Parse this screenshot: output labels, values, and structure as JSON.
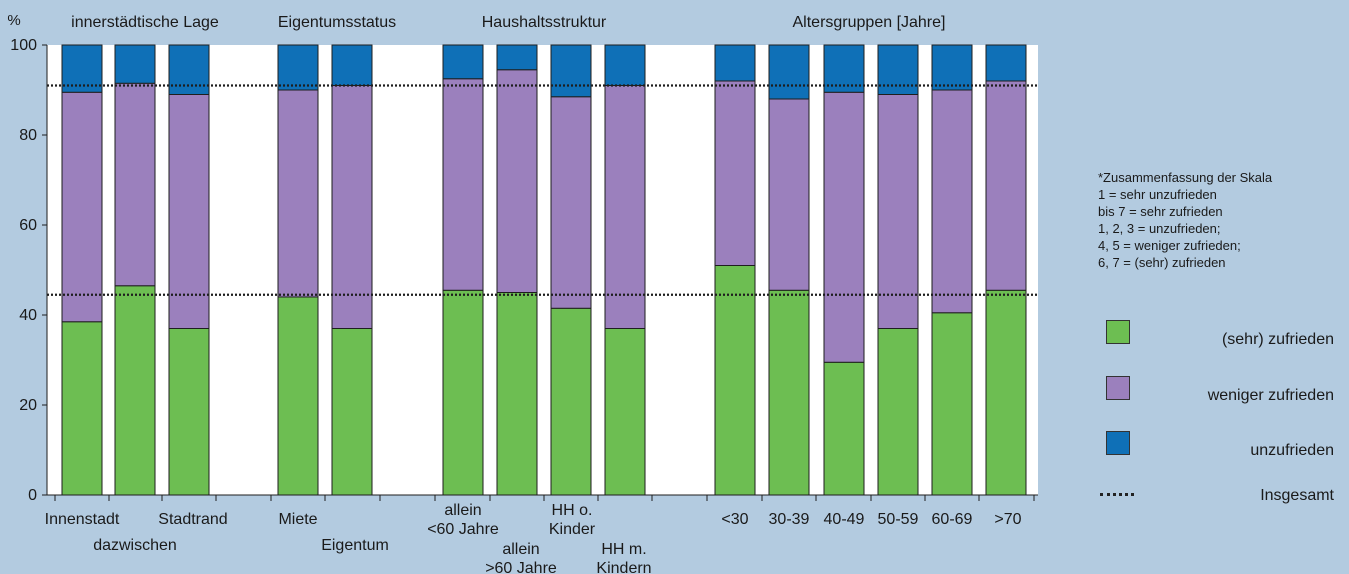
{
  "chart_data": {
    "type": "bar",
    "stacked": true,
    "y_unit_label": "%",
    "ylim": [
      0,
      100
    ],
    "yticks": [
      0,
      20,
      40,
      60,
      80,
      100
    ],
    "group_headers": [
      "innerstädtische Lage",
      "Eigentumsstatus",
      "Haushaltsstruktur",
      "Altersgruppen [Jahre]"
    ],
    "categories": [
      {
        "label": "Innenstadt",
        "group": 0
      },
      {
        "label": "dazwischen",
        "group": 0
      },
      {
        "label": "Stadtrand",
        "group": 0
      },
      {
        "label": "Miete",
        "group": 1
      },
      {
        "label": "Eigentum",
        "group": 1
      },
      {
        "label": "allein\n<60 Jahre",
        "group": 2
      },
      {
        "label": "allein\n>60 Jahre",
        "group": 2
      },
      {
        "label": "HH o.\nKinder",
        "group": 2
      },
      {
        "label": "HH m.\nKindern",
        "group": 2
      },
      {
        "label": "<30",
        "group": 3
      },
      {
        "label": "30-39",
        "group": 3
      },
      {
        "label": "40-49",
        "group": 3
      },
      {
        "label": "50-59",
        "group": 3
      },
      {
        "label": "60-69",
        "group": 3
      },
      {
        "label": ">70",
        "group": 3
      }
    ],
    "series": [
      {
        "name": "(sehr) zufrieden",
        "color": "#6dbe52",
        "values": [
          38.5,
          46.5,
          37,
          44,
          37,
          45.5,
          45,
          41.5,
          37,
          51,
          45.5,
          29.5,
          37,
          40.5,
          45.5
        ]
      },
      {
        "name": "weniger zufrieden",
        "color": "#9b80bd",
        "values": [
          51,
          45,
          52,
          46,
          54,
          47,
          49.5,
          47,
          54,
          41,
          42.5,
          60,
          52,
          49.5,
          46.5
        ]
      },
      {
        "name": "unzufrieden",
        "color": "#0f70b7",
        "values": [
          10.5,
          8.5,
          11,
          10,
          9,
          7.5,
          5.5,
          11.5,
          9,
          8,
          12,
          10.5,
          11,
          10,
          8
        ]
      }
    ],
    "reference_lines": [
      {
        "name": "Insgesamt",
        "values": [
          44.5,
          91
        ]
      }
    ]
  },
  "note": {
    "lines": [
      "*Zusammenfassung der Skala",
      "1 = sehr unzufrieden",
      "bis 7 = sehr zufrieden",
      "1, 2, 3 = unzufrieden;",
      "4, 5 = weniger zufrieden;",
      "6, 7 = (sehr) zufrieden"
    ]
  },
  "legend": {
    "items": [
      {
        "label": "(sehr) zufrieden",
        "color": "#6dbe52"
      },
      {
        "label": "weniger zufrieden",
        "color": "#9b80bd"
      },
      {
        "label": "unzufrieden",
        "color": "#0f70b7"
      },
      {
        "label": "Insgesamt"
      }
    ]
  }
}
